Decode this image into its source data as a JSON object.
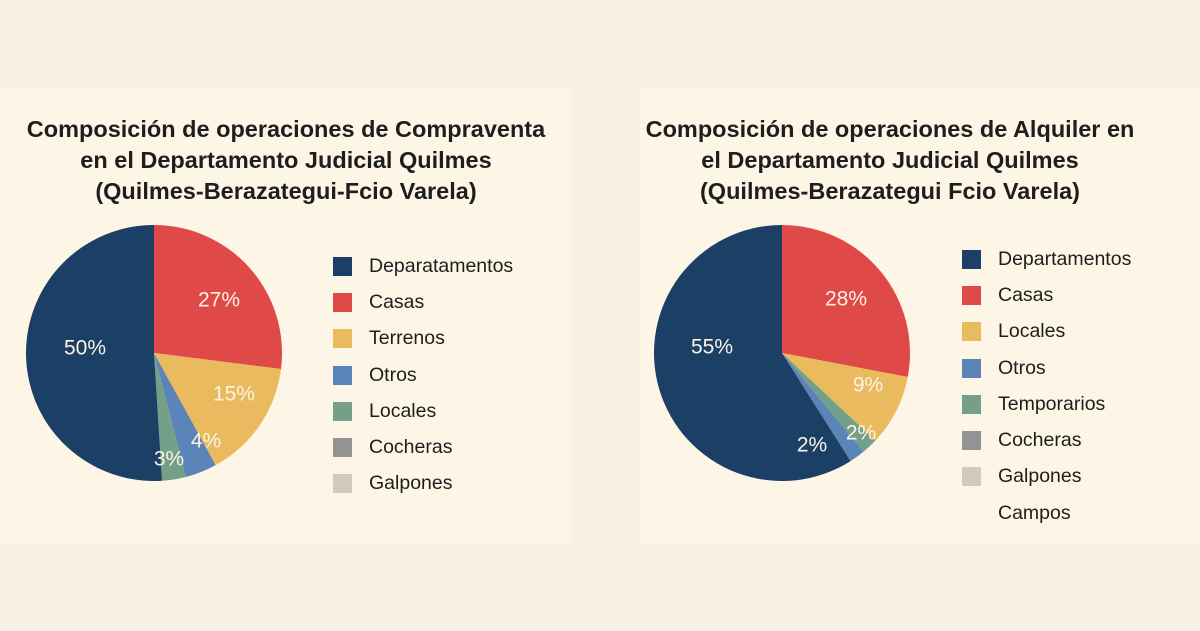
{
  "chart_data": [
    {
      "type": "pie",
      "title": [
        "Composición de operaciones de Compraventa",
        "en el Departamento Judicial Quilmes",
        "(Quilmes-Berazategui-Fcio Varela)"
      ],
      "legend": [
        {
          "label": "Deparatamentos",
          "color": "#1c3f66"
        },
        {
          "label": "Casas",
          "color": "#df4a48"
        },
        {
          "label": "Terrenos",
          "color": "#e9bb5e"
        },
        {
          "label": "Otros",
          "color": "#5b84b8"
        },
        {
          "label": "Locales",
          "color": "#74a08a"
        },
        {
          "label": "Cocheras",
          "color": "#939393"
        },
        {
          "label": "Galpones",
          "color": "#d2cbbd"
        }
      ],
      "slices": [
        {
          "category": "Casas",
          "value": 27,
          "label": "27%",
          "color": "#df4a48"
        },
        {
          "category": "Terrenos",
          "value": 15,
          "label": "15%",
          "color": "#e9bb5e"
        },
        {
          "category": "Otros",
          "value": 4,
          "label": "4%",
          "color": "#5b84b8"
        },
        {
          "category": "Locales",
          "value": 3,
          "label": "3%",
          "color": "#74a08a"
        },
        {
          "category": "Deparatamentos",
          "value": 50,
          "label": "50%",
          "color": "#1c3f66"
        }
      ],
      "legend_position": "right"
    },
    {
      "type": "pie",
      "title": [
        "Composición de operaciones de Alquiler en",
        "el Departamento Judicial Quilmes",
        "(Quilmes-Berazategui Fcio Varela)"
      ],
      "legend": [
        {
          "label": "Departamentos",
          "color": "#1c3f66"
        },
        {
          "label": "Casas",
          "color": "#df4a48"
        },
        {
          "label": "Locales",
          "color": "#e9bb5e"
        },
        {
          "label": "Otros",
          "color": "#5b84b8"
        },
        {
          "label": "Temporarios",
          "color": "#74a08a"
        },
        {
          "label": "Cocheras",
          "color": "#939393"
        },
        {
          "label": "Galpones",
          "color": "#d2cbbd"
        },
        {
          "label": "Campos",
          "color": ""
        }
      ],
      "slices": [
        {
          "category": "Casas",
          "value": 28,
          "label": "28%",
          "color": "#df4a48"
        },
        {
          "category": "Locales",
          "value": 9,
          "label": "9%",
          "color": "#e9bb5e"
        },
        {
          "category": "Temporarios",
          "value": 2,
          "label": "2%",
          "color": "#74a08a"
        },
        {
          "category": "Otros",
          "value": 2,
          "label": "2%",
          "color": "#5b84b8"
        },
        {
          "category": "Departamentos",
          "value": 55,
          "label": "55%",
          "color": "#1c3f66"
        }
      ],
      "legend_position": "right"
    }
  ]
}
